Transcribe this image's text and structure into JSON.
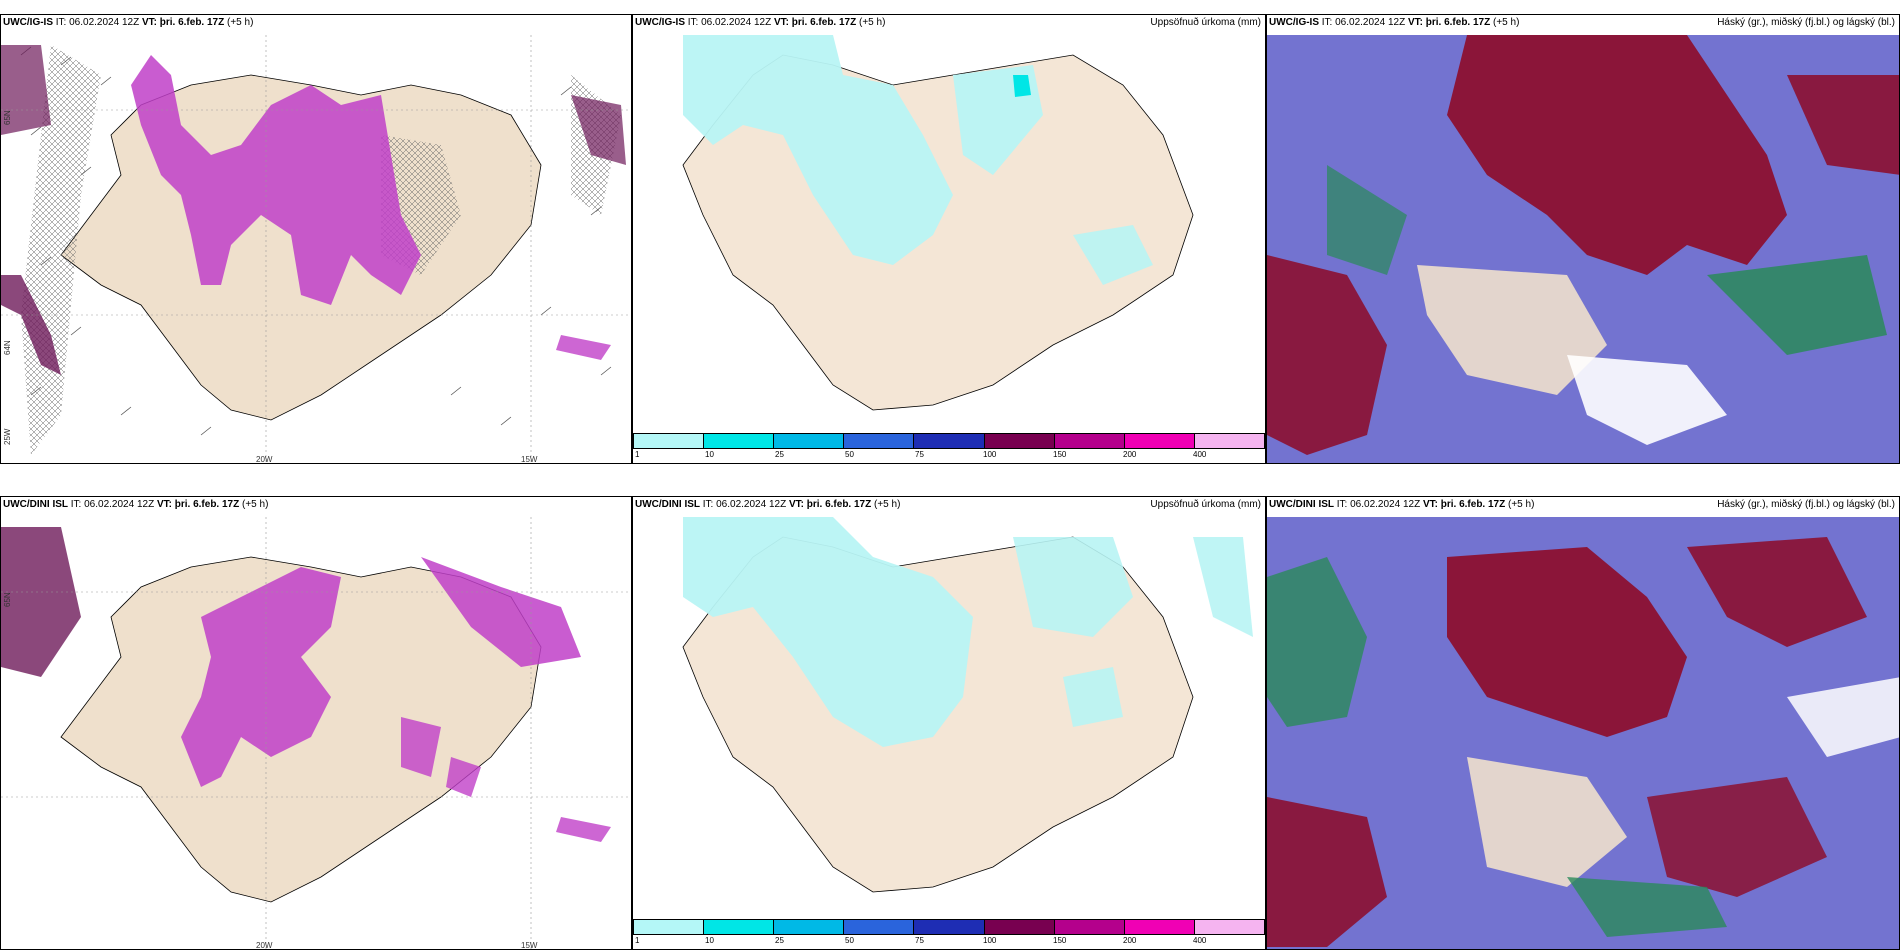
{
  "rows": [
    {
      "model": "UWC/IG-IS",
      "it_label": "IT:",
      "it_value": "06.02.2024 12Z",
      "vt_label": "VT:",
      "vt_value": "þri. 6.feb. 17Z",
      "offset": "(+5 h)"
    },
    {
      "model": "UWC/DINI ISL",
      "it_label": "IT:",
      "it_value": "06.02.2024 12Z",
      "vt_label": "VT:",
      "vt_value": "þri. 6.feb. 17Z",
      "offset": "(+5 h)"
    }
  ],
  "panels": {
    "precip_title": "Uppsöfnuð úrkoma (mm)",
    "cloud_title": "Háský (gr.), miðský (fj.bl.) og lágský (bl.)"
  },
  "axis": {
    "lon_20w": "20W",
    "lon_15w": "15W",
    "lat_65n": "65N",
    "lat_64n": "64N",
    "lon_25w": "25W"
  },
  "colorbar": {
    "labels": [
      "1",
      "10",
      "25",
      "50",
      "75",
      "100",
      "150",
      "200",
      "400"
    ],
    "colors": [
      "#b4f7f7",
      "#00e6e6",
      "#00b9e6",
      "#2a64dc",
      "#1e2db4",
      "#780050",
      "#b4008c",
      "#f000b4",
      "#f5b4f0"
    ]
  },
  "colors": {
    "land": "#efe0cc",
    "precip_light": "#b8f4f4",
    "magenta": "#c040c8",
    "dark_purple": "#6e1a5a",
    "cloud_high_red": "#8c1030",
    "cloud_mid_blue": "#5a5ac8",
    "cloud_low_green": "#2a8a5a"
  }
}
